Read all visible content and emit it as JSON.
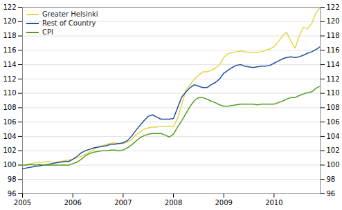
{
  "chart_data": {
    "type": "line",
    "x": [
      2005.0,
      2005.083,
      2005.167,
      2005.25,
      2005.333,
      2005.417,
      2005.5,
      2005.583,
      2005.667,
      2005.75,
      2005.833,
      2005.917,
      2006.0,
      2006.083,
      2006.167,
      2006.25,
      2006.333,
      2006.417,
      2006.5,
      2006.583,
      2006.667,
      2006.75,
      2006.833,
      2006.917,
      2007.0,
      2007.083,
      2007.167,
      2007.25,
      2007.333,
      2007.417,
      2007.5,
      2007.583,
      2007.667,
      2007.75,
      2007.833,
      2007.917,
      2008.0,
      2008.083,
      2008.167,
      2008.25,
      2008.333,
      2008.417,
      2008.5,
      2008.583,
      2008.667,
      2008.75,
      2008.833,
      2008.917,
      2009.0,
      2009.083,
      2009.167,
      2009.25,
      2009.333,
      2009.417,
      2009.5,
      2009.583,
      2009.667,
      2009.75,
      2009.833,
      2009.917,
      2010.0,
      2010.083,
      2010.167,
      2010.25,
      2010.333,
      2010.417,
      2010.5,
      2010.583,
      2010.667,
      2010.75,
      2010.833,
      2010.917
    ],
    "series": [
      {
        "name": "Greater Helsinki",
        "color": "#e8d44d",
        "values": [
          100.0,
          100.1,
          100.2,
          100.3,
          100.4,
          100.4,
          100.5,
          100.4,
          100.4,
          100.5,
          100.6,
          100.7,
          100.8,
          101.0,
          101.2,
          101.5,
          101.8,
          102.2,
          102.5,
          102.7,
          102.9,
          103.0,
          103.1,
          103.0,
          103.0,
          103.2,
          103.5,
          104.2,
          104.6,
          105.0,
          105.2,
          105.3,
          105.3,
          105.4,
          105.4,
          105.4,
          105.4,
          106.5,
          108.5,
          110.5,
          111.2,
          112.0,
          112.5,
          113.0,
          113.0,
          113.2,
          113.5,
          114.0,
          115.0,
          115.5,
          115.7,
          115.8,
          115.9,
          115.8,
          115.7,
          115.7,
          115.7,
          115.8,
          116.0,
          116.2,
          116.5,
          117.2,
          118.0,
          118.5,
          117.3,
          116.3,
          118.0,
          119.2,
          119.0,
          119.8,
          121.2,
          122.0
        ]
      },
      {
        "name": "Rest of Country",
        "color": "#2050a0",
        "values": [
          99.5,
          99.6,
          99.7,
          99.8,
          99.9,
          100.0,
          100.1,
          100.2,
          100.3,
          100.4,
          100.5,
          100.5,
          100.8,
          101.2,
          101.7,
          102.0,
          102.2,
          102.4,
          102.5,
          102.6,
          102.7,
          102.9,
          102.9,
          103.0,
          103.1,
          103.4,
          104.0,
          104.8,
          105.5,
          106.2,
          106.8,
          107.0,
          106.7,
          106.4,
          106.4,
          106.4,
          106.5,
          108.0,
          109.5,
          110.2,
          110.8,
          111.2,
          111.0,
          110.8,
          110.8,
          111.2,
          111.5,
          112.0,
          112.8,
          113.2,
          113.6,
          113.9,
          114.0,
          113.8,
          113.7,
          113.6,
          113.7,
          113.8,
          113.8,
          113.9,
          114.2,
          114.5,
          114.8,
          115.0,
          115.1,
          115.0,
          115.1,
          115.3,
          115.6,
          115.8,
          116.1,
          116.5
        ]
      },
      {
        "name": "CPI",
        "color": "#50a020",
        "values": [
          100.0,
          100.0,
          100.1,
          100.0,
          100.1,
          100.0,
          100.0,
          100.0,
          100.0,
          100.0,
          100.0,
          100.0,
          100.2,
          100.4,
          100.8,
          101.3,
          101.6,
          101.8,
          101.9,
          102.0,
          102.0,
          102.1,
          102.1,
          102.0,
          102.1,
          102.4,
          102.8,
          103.3,
          103.8,
          104.1,
          104.3,
          104.4,
          104.4,
          104.4,
          104.2,
          103.9,
          104.3,
          105.3,
          106.2,
          107.2,
          108.2,
          109.0,
          109.4,
          109.4,
          109.2,
          108.9,
          108.7,
          108.4,
          108.2,
          108.2,
          108.3,
          108.4,
          108.5,
          108.5,
          108.5,
          108.5,
          108.4,
          108.5,
          108.5,
          108.5,
          108.5,
          108.7,
          108.9,
          109.2,
          109.4,
          109.4,
          109.7,
          109.9,
          110.1,
          110.2,
          110.7,
          111.0
        ]
      }
    ],
    "xlim": [
      2005.0,
      2010.917
    ],
    "ylim": [
      96,
      122
    ],
    "xticks": [
      2005,
      2006,
      2007,
      2008,
      2009,
      2010
    ],
    "yticks": [
      96,
      98,
      100,
      102,
      104,
      106,
      108,
      110,
      112,
      114,
      116,
      118,
      120,
      122
    ],
    "grid": true,
    "legend": "upper left"
  }
}
